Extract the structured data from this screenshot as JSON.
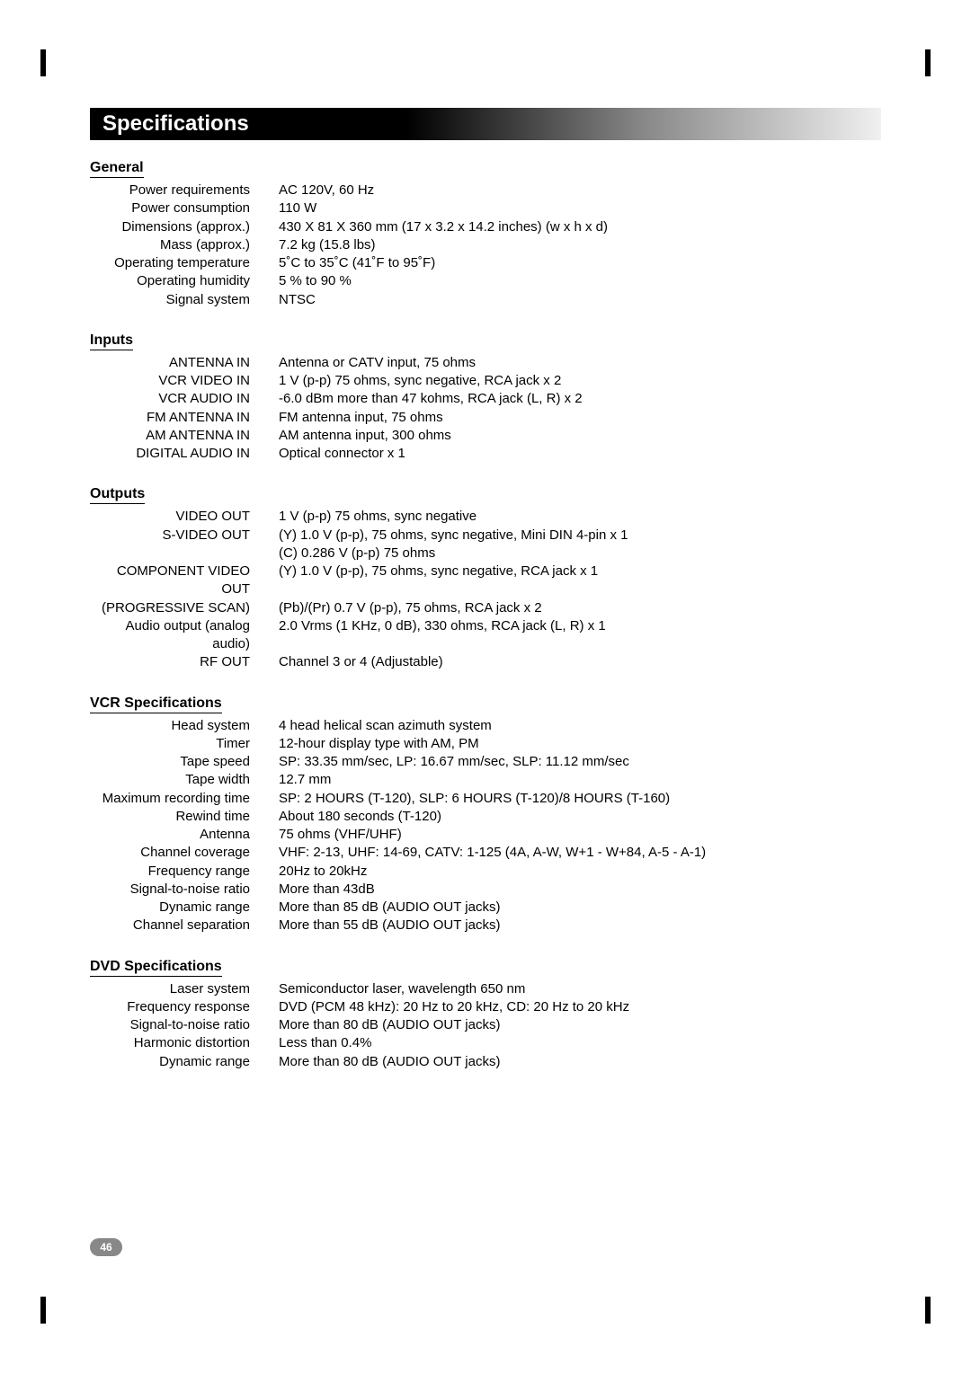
{
  "title": "Specifications",
  "page_number": "46",
  "sections": [
    {
      "heading": "General",
      "rows": [
        {
          "label": "Power requirements",
          "value": "AC 120V, 60 Hz"
        },
        {
          "label": "Power consumption",
          "value": "110 W"
        },
        {
          "label": "Dimensions (approx.)",
          "value": "430 X 81 X 360 mm (17 x 3.2 x 14.2 inches) (w x h x d)"
        },
        {
          "label": "Mass (approx.)",
          "value": "7.2 kg (15.8 lbs)"
        },
        {
          "label": "Operating temperature",
          "value": "5˚C to 35˚C (41˚F to 95˚F)"
        },
        {
          "label": "Operating humidity",
          "value": "5 % to 90 %"
        },
        {
          "label": "Signal system",
          "value": "NTSC"
        }
      ]
    },
    {
      "heading": "Inputs",
      "rows": [
        {
          "label": "ANTENNA IN",
          "value": "Antenna or CATV input, 75 ohms"
        },
        {
          "label": "VCR VIDEO IN",
          "value": "1 V (p-p) 75 ohms, sync negative, RCA jack x 2"
        },
        {
          "label": "VCR AUDIO IN",
          "value": "-6.0 dBm more than 47 kohms, RCA jack (L, R) x 2"
        },
        {
          "label": "FM ANTENNA IN",
          "value": "FM antenna input, 75 ohms"
        },
        {
          "label": "AM ANTENNA IN",
          "value": "AM antenna input, 300 ohms"
        },
        {
          "label": "DIGITAL AUDIO IN",
          "value": "Optical connector x 1"
        }
      ]
    },
    {
      "heading": "Outputs",
      "rows": [
        {
          "label": "VIDEO OUT",
          "value": "1 V (p-p) 75 ohms, sync negative"
        },
        {
          "label": "S-VIDEO OUT",
          "value": "(Y) 1.0 V (p-p), 75 ohms, sync negative, Mini DIN 4-pin x 1"
        },
        {
          "label": "",
          "value": "(C) 0.286 V (p-p) 75 ohms"
        },
        {
          "label": "COMPONENT VIDEO OUT",
          "value": "(Y) 1.0 V (p-p), 75 ohms, sync negative, RCA jack x 1"
        },
        {
          "label": "(PROGRESSIVE SCAN)",
          "value": "(Pb)/(Pr) 0.7 V (p-p), 75 ohms, RCA jack x 2"
        },
        {
          "label": "Audio output (analog audio)",
          "value": "2.0 Vrms (1 KHz, 0 dB), 330 ohms, RCA jack (L, R) x 1"
        },
        {
          "label": "RF OUT",
          "value": "Channel 3 or 4 (Adjustable)"
        }
      ]
    },
    {
      "heading": "VCR Specifications",
      "rows": [
        {
          "label": "Head system",
          "value": "4 head helical scan azimuth system"
        },
        {
          "label": "Timer",
          "value": "12-hour display type with AM, PM"
        },
        {
          "label": "Tape speed",
          "value": "SP: 33.35 mm/sec, LP: 16.67 mm/sec, SLP: 11.12 mm/sec"
        },
        {
          "label": "Tape width",
          "value": "12.7 mm"
        },
        {
          "label": "Maximum recording time",
          "value": "SP: 2 HOURS (T-120), SLP: 6 HOURS (T-120)/8 HOURS (T-160)"
        },
        {
          "label": "Rewind time",
          "value": "About 180 seconds (T-120)"
        },
        {
          "label": "Antenna",
          "value": "75 ohms (VHF/UHF)"
        },
        {
          "label": "Channel coverage",
          "value": "VHF: 2-13, UHF: 14-69, CATV: 1-125 (4A, A-W, W+1 - W+84, A-5 - A-1)"
        },
        {
          "label": "Frequency range",
          "value": "20Hz to 20kHz"
        },
        {
          "label": "Signal-to-noise ratio",
          "value": "More than 43dB"
        },
        {
          "label": "Dynamic range",
          "value": "More than 85 dB (AUDIO OUT jacks)"
        },
        {
          "label": "Channel separation",
          "value": "More than 55 dB (AUDIO OUT jacks)"
        }
      ]
    },
    {
      "heading": "DVD Specifications",
      "rows": [
        {
          "label": "Laser system",
          "value": "Semiconductor laser, wavelength 650 nm"
        },
        {
          "label": "Frequency response",
          "value": "DVD (PCM 48 kHz): 20 Hz to 20 kHz, CD: 20 Hz to 20 kHz"
        },
        {
          "label": "Signal-to-noise ratio",
          "value": "More than 80 dB (AUDIO OUT jacks)"
        },
        {
          "label": "Harmonic distortion",
          "value": "Less than 0.4%"
        },
        {
          "label": "Dynamic range",
          "value": "More than 80 dB (AUDIO OUT jacks)"
        }
      ]
    }
  ],
  "colors": {
    "text": "#000000",
    "title_text": "#ffffff",
    "page_badge_bg": "#888888"
  }
}
